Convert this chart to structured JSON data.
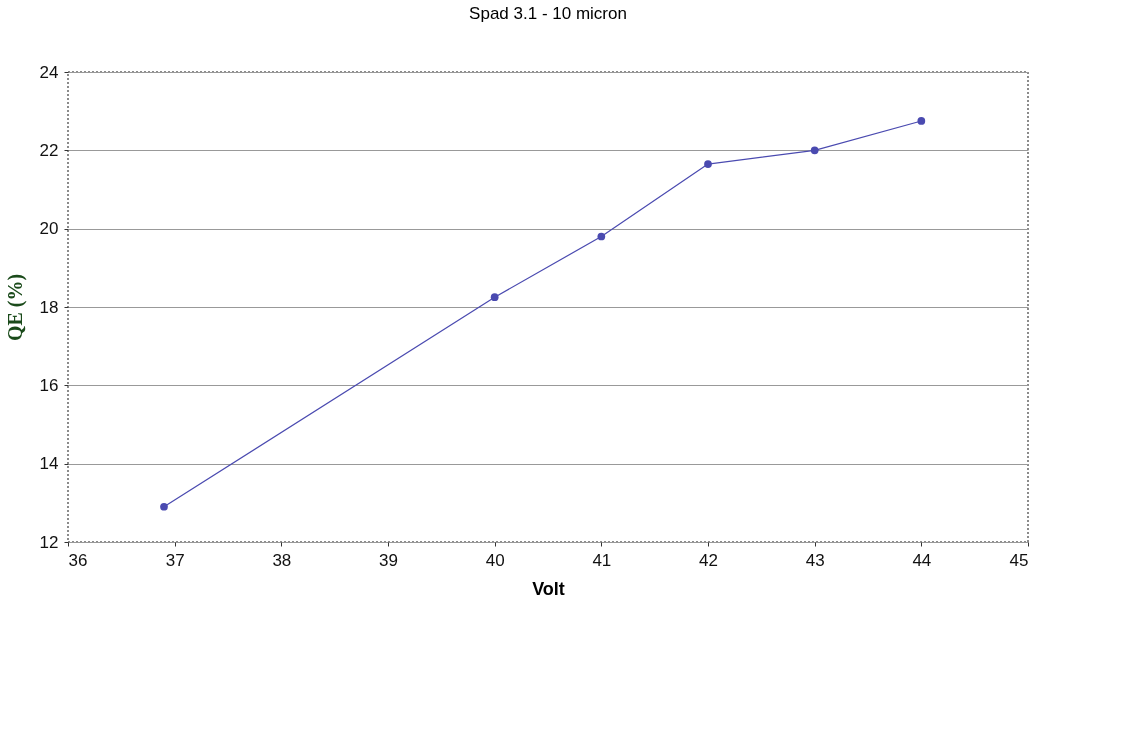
{
  "chart_data": {
    "type": "line",
    "title": "Spad 3.1 - 10 micron",
    "xlabel": "Volt",
    "ylabel": "QE (%)",
    "x": [
      36.9,
      40,
      41,
      42,
      43,
      44
    ],
    "series": [
      {
        "color": "#4a4ab0",
        "values": [
          12.9,
          18.25,
          19.8,
          21.65,
          22.0,
          22.75
        ]
      }
    ],
    "xlim": [
      36,
      45
    ],
    "xticks": [
      36,
      37,
      38,
      39,
      40,
      41,
      42,
      43,
      44,
      45
    ],
    "ylim": [
      12,
      24
    ],
    "yticks": [
      12,
      14,
      16,
      18,
      20,
      22,
      24
    ],
    "grid": "y",
    "marker": "circle",
    "line_style": "solid"
  }
}
